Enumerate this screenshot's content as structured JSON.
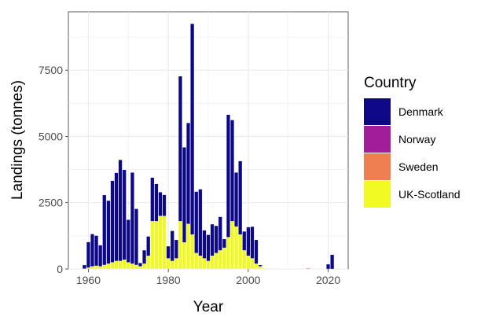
{
  "chart_data": {
    "type": "bar",
    "stacked": true,
    "xlabel": "Year",
    "ylabel": "Landings (tonnes)",
    "xlim": [
      1955,
      2025
    ],
    "ylim": [
      0,
      9700
    ],
    "x_ticks": [
      1960,
      1980,
      2000,
      2020
    ],
    "y_ticks": [
      0,
      2500,
      5000,
      7500
    ],
    "grid": true,
    "legend": {
      "title": "Country",
      "position": "right"
    },
    "years": [
      1959,
      1960,
      1961,
      1962,
      1963,
      1964,
      1965,
      1966,
      1967,
      1968,
      1969,
      1970,
      1971,
      1972,
      1973,
      1974,
      1975,
      1976,
      1977,
      1978,
      1979,
      1980,
      1981,
      1982,
      1983,
      1984,
      1985,
      1986,
      1987,
      1988,
      1989,
      1990,
      1991,
      1992,
      1993,
      1994,
      1995,
      1996,
      1997,
      1998,
      1999,
      2000,
      2001,
      2002,
      2003,
      2004,
      2005,
      2006,
      2007,
      2008,
      2009,
      2010,
      2011,
      2012,
      2013,
      2014,
      2015,
      2016,
      2017,
      2018,
      2019,
      2020,
      2021
    ],
    "series": [
      {
        "name": "UK-Scotland",
        "color": "#f0f921",
        "values": [
          10,
          50,
          100,
          120,
          100,
          150,
          200,
          250,
          300,
          300,
          350,
          250,
          200,
          150,
          100,
          200,
          500,
          1800,
          1800,
          2000,
          2000,
          400,
          300,
          400,
          1800,
          1000,
          1700,
          1300,
          600,
          500,
          400,
          300,
          500,
          600,
          700,
          800,
          1200,
          1800,
          1600,
          1300,
          700,
          500,
          400,
          200,
          100,
          30,
          0,
          0,
          0,
          0,
          0,
          0,
          0,
          0,
          0,
          0,
          0,
          0,
          0,
          0,
          0,
          0,
          0
        ]
      },
      {
        "name": "Sweden",
        "color": "#f07f4f",
        "values": [
          0,
          0,
          0,
          0,
          0,
          0,
          0,
          0,
          0,
          0,
          0,
          0,
          0,
          0,
          0,
          0,
          0,
          0,
          0,
          0,
          0,
          0,
          0,
          0,
          0,
          0,
          0,
          0,
          0,
          0,
          0,
          0,
          0,
          0,
          0,
          0,
          0,
          0,
          0,
          0,
          0,
          0,
          0,
          0,
          0,
          0,
          0,
          0,
          0,
          0,
          0,
          0,
          0,
          0,
          0,
          0,
          0,
          0,
          0,
          0,
          0,
          0,
          0
        ]
      },
      {
        "name": "Norway",
        "color": "#a21d9a",
        "values": [
          0,
          0,
          0,
          0,
          0,
          0,
          0,
          0,
          0,
          0,
          0,
          0,
          0,
          0,
          0,
          0,
          0,
          0,
          0,
          0,
          0,
          0,
          0,
          0,
          0,
          0,
          0,
          0,
          0,
          0,
          0,
          0,
          0,
          0,
          0,
          0,
          0,
          0,
          0,
          0,
          0,
          0,
          0,
          0,
          0,
          0,
          0,
          0,
          0,
          0,
          0,
          0,
          0,
          0,
          0,
          0,
          20,
          0,
          0,
          0,
          0,
          0,
          0
        ]
      },
      {
        "name": "Denmark",
        "color": "#0d0887",
        "values": [
          140,
          970,
          1220,
          1140,
          800,
          2640,
          2380,
          3080,
          3330,
          3820,
          3390,
          1610,
          3440,
          2120,
          130,
          510,
          730,
          1650,
          1410,
          900,
          800,
          460,
          1140,
          700,
          5470,
          3590,
          3810,
          7950,
          2320,
          2510,
          1060,
          990,
          1190,
          1030,
          1270,
          330,
          4620,
          3820,
          2040,
          2770,
          720,
          1080,
          1200,
          900,
          50,
          0,
          0,
          0,
          0,
          0,
          0,
          0,
          0,
          0,
          0,
          0,
          0,
          0,
          0,
          0,
          0,
          180,
          540
        ]
      }
    ]
  }
}
